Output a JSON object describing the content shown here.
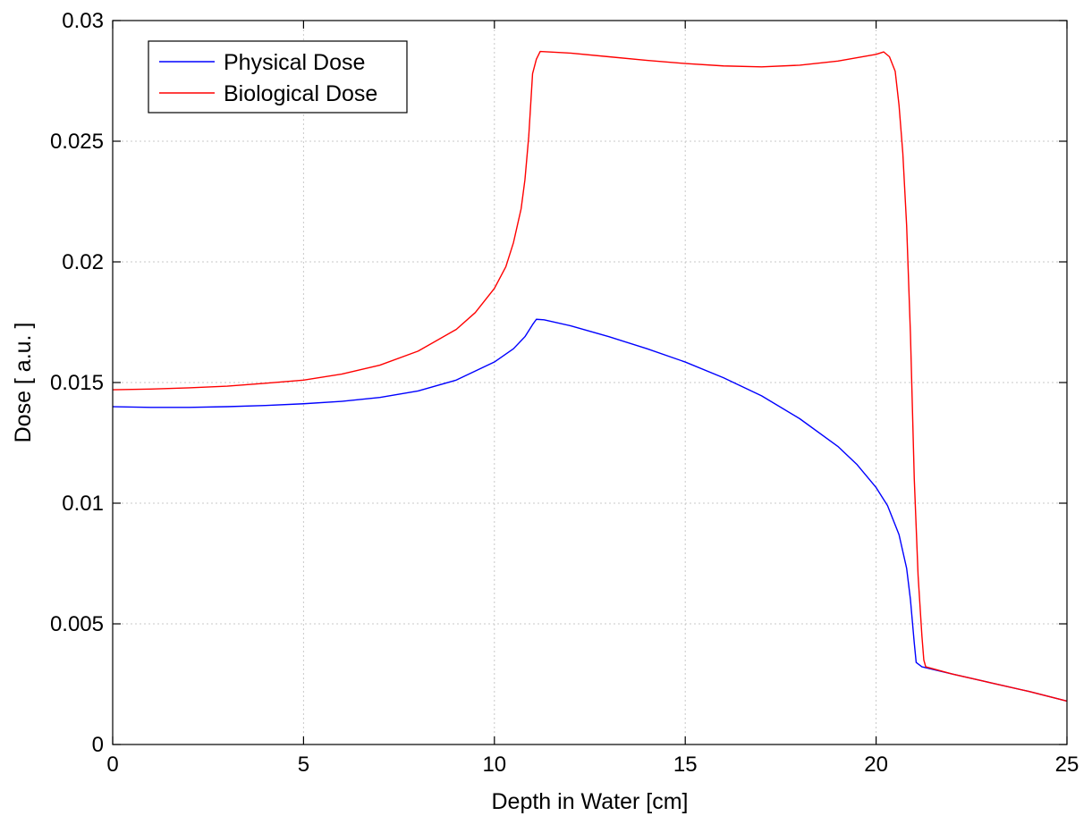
{
  "chart_data": {
    "type": "line",
    "title": "",
    "xlabel": "Depth in Water [cm]",
    "ylabel": "Dose [ a.u. ]",
    "xlim": [
      0,
      25
    ],
    "ylim": [
      0,
      0.03
    ],
    "x_ticks": [
      0,
      5,
      10,
      15,
      20,
      25
    ],
    "y_ticks": [
      0,
      0.005,
      0.01,
      0.015,
      0.02,
      0.025,
      0.03
    ],
    "x_tick_labels": [
      "0",
      "5",
      "10",
      "15",
      "20",
      "25"
    ],
    "y_tick_labels": [
      "0",
      "0.005",
      "0.01",
      "0.015",
      "0.02",
      "0.025",
      "0.03"
    ],
    "grid": true,
    "legend_position": "top-left",
    "series": [
      {
        "name": "Physical Dose",
        "color": "#0000ff",
        "points": [
          [
            0,
            0.014
          ],
          [
            1,
            0.01397
          ],
          [
            2,
            0.01397
          ],
          [
            3,
            0.014
          ],
          [
            4,
            0.01405
          ],
          [
            5,
            0.01412
          ],
          [
            6,
            0.01422
          ],
          [
            7,
            0.01438
          ],
          [
            8,
            0.01465
          ],
          [
            9,
            0.0151
          ],
          [
            10,
            0.01585
          ],
          [
            10.5,
            0.0164
          ],
          [
            10.8,
            0.0169
          ],
          [
            11.0,
            0.0174
          ],
          [
            11.1,
            0.01762
          ],
          [
            11.3,
            0.0176
          ],
          [
            12,
            0.01735
          ],
          [
            13,
            0.0169
          ],
          [
            14,
            0.0164
          ],
          [
            15,
            0.01585
          ],
          [
            16,
            0.0152
          ],
          [
            17,
            0.01445
          ],
          [
            18,
            0.0135
          ],
          [
            19,
            0.01235
          ],
          [
            19.5,
            0.0116
          ],
          [
            20,
            0.01065
          ],
          [
            20.3,
            0.0099
          ],
          [
            20.6,
            0.0087
          ],
          [
            20.8,
            0.0073
          ],
          [
            20.9,
            0.006
          ],
          [
            21.0,
            0.0042
          ],
          [
            21.05,
            0.0034
          ],
          [
            21.2,
            0.00322
          ],
          [
            22,
            0.00292
          ],
          [
            23,
            0.00256
          ],
          [
            24,
            0.0022
          ],
          [
            25,
            0.0018
          ]
        ]
      },
      {
        "name": "Biological Dose",
        "color": "#ff0000",
        "points": [
          [
            0,
            0.0147
          ],
          [
            1,
            0.01473
          ],
          [
            2,
            0.01478
          ],
          [
            3,
            0.01485
          ],
          [
            4,
            0.01497
          ],
          [
            5,
            0.0151
          ],
          [
            6,
            0.01535
          ],
          [
            7,
            0.01572
          ],
          [
            8,
            0.0163
          ],
          [
            9,
            0.0172
          ],
          [
            9.5,
            0.0179
          ],
          [
            10,
            0.0189
          ],
          [
            10.3,
            0.0198
          ],
          [
            10.5,
            0.0208
          ],
          [
            10.7,
            0.0222
          ],
          [
            10.8,
            0.0234
          ],
          [
            10.9,
            0.0252
          ],
          [
            11.0,
            0.0278
          ],
          [
            11.1,
            0.0284
          ],
          [
            11.2,
            0.02872
          ],
          [
            12,
            0.02865
          ],
          [
            13,
            0.0285
          ],
          [
            14,
            0.02835
          ],
          [
            15,
            0.02822
          ],
          [
            16,
            0.02812
          ],
          [
            17,
            0.02808
          ],
          [
            18,
            0.02815
          ],
          [
            19,
            0.02832
          ],
          [
            20,
            0.0286
          ],
          [
            20.2,
            0.0287
          ],
          [
            20.35,
            0.0285
          ],
          [
            20.5,
            0.0279
          ],
          [
            20.6,
            0.0265
          ],
          [
            20.7,
            0.0245
          ],
          [
            20.8,
            0.0215
          ],
          [
            20.9,
            0.017
          ],
          [
            21.0,
            0.011
          ],
          [
            21.1,
            0.007
          ],
          [
            21.2,
            0.0045
          ],
          [
            21.25,
            0.0035
          ],
          [
            21.3,
            0.00322
          ],
          [
            22,
            0.00292
          ],
          [
            23,
            0.00256
          ],
          [
            24,
            0.0022
          ],
          [
            25,
            0.0018
          ]
        ]
      }
    ]
  }
}
